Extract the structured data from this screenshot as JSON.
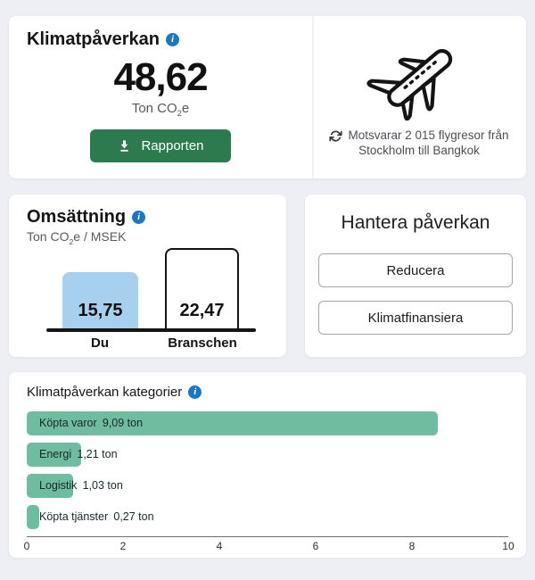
{
  "colors": {
    "background": "#edeff4",
    "card": "#ffffff",
    "info_icon_blue": "#1b77c4",
    "report_button_green": "#2d7a4e",
    "you_bar_blue": "#a6d0ee",
    "category_bar_green": "#70bca0"
  },
  "climate_card": {
    "title": "Klimatpåverkan",
    "value": "48,62",
    "unit_prefix": "Ton CO",
    "unit_sub": "2",
    "unit_suffix": "e",
    "report_button": "Rapporten",
    "equivalence_line1": "Motsvarar 2 015 flygresor från",
    "equivalence_line2": "Stockholm till Bangkok"
  },
  "turnover_card": {
    "title": "Omsättning",
    "subtitle_prefix": "Ton CO",
    "subtitle_sub": "2",
    "subtitle_suffix": "e / MSEK",
    "chart_data": {
      "type": "bar",
      "categories": [
        "Du",
        "Branschen"
      ],
      "values": [
        15.75,
        22.47
      ],
      "value_labels": [
        "15,75",
        "22,47"
      ],
      "ylabel": "Ton CO2e / MSEK",
      "grid": false,
      "bar_colors": [
        "#a6d0ee",
        "#ffffff"
      ]
    }
  },
  "manage_card": {
    "title": "Hantera påverkan",
    "buttons": [
      "Reducera",
      "Klimatfinansiera"
    ]
  },
  "categories_card": {
    "title": "Klimatpåverkan kategorier",
    "chart_data": {
      "type": "bar",
      "orientation": "horizontal",
      "categories": [
        "Köpta varor",
        "Energi",
        "Logistik",
        "Köpta tjänster"
      ],
      "values": [
        9.09,
        1.21,
        1.03,
        0.27
      ],
      "value_labels": [
        "9,09 ton",
        "1,21 ton",
        "1,03 ton",
        "0,27 ton"
      ],
      "xlim": [
        0,
        10
      ],
      "ticks": [
        0,
        2,
        4,
        6,
        8,
        10
      ],
      "grid": false
    }
  }
}
